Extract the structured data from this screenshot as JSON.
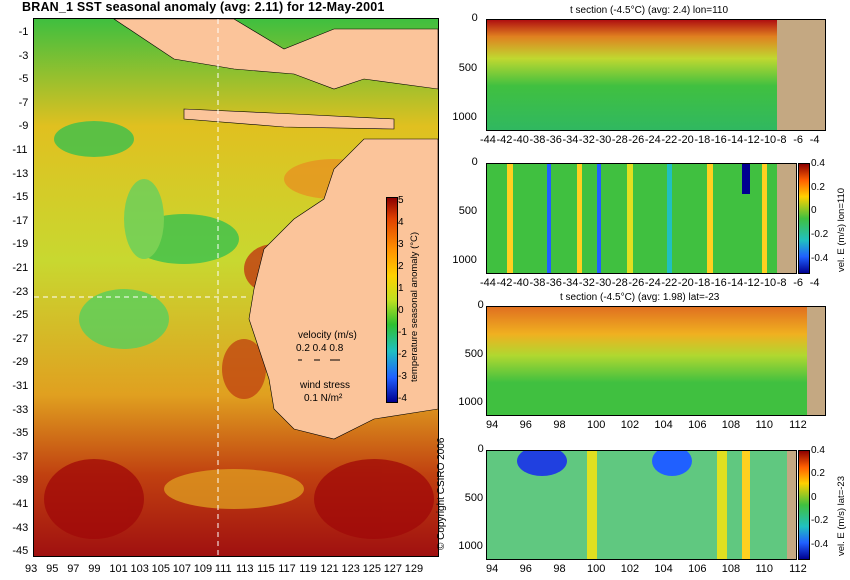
{
  "map": {
    "title": "BRAN_1 SST seasonal anomaly (avg: 2.11) for 12-May-2001",
    "lat_labels": [
      "-1",
      "-3",
      "-5",
      "-7",
      "-9",
      "-11",
      "-13",
      "-15",
      "-17",
      "-19",
      "-21",
      "-23",
      "-25",
      "-27",
      "-29",
      "-31",
      "-33",
      "-35",
      "-37",
      "-39",
      "-41",
      "-43",
      "-45"
    ],
    "lon_labels": [
      "93",
      "95",
      "97",
      "99",
      "101",
      "103",
      "105",
      "107",
      "109",
      "111",
      "113",
      "115",
      "117",
      "119",
      "121",
      "123",
      "125",
      "127",
      "129"
    ],
    "colorbar": {
      "ticks": [
        "5",
        "4",
        "3",
        "2",
        "1",
        "0",
        "-1",
        "-2",
        "-3",
        "-4"
      ],
      "label": "temperature seasonal anomaly (°C)"
    },
    "velocity_legend": {
      "title": "velocity (m/s)",
      "values": "0.2 0.4 0.8",
      "wind_title": "wind stress",
      "wind_value": "0.1 N/m²"
    },
    "copyright": "© Copyright CSIRO 2006"
  },
  "panels": [
    {
      "title": "t section (-4.5°C) (avg: 2.4) lon=110",
      "xlabels": [
        "-44",
        "-42",
        "-40",
        "-38",
        "-36",
        "-34",
        "-32",
        "-30",
        "-28",
        "-26",
        "-24",
        "-22",
        "-20",
        "-18",
        "-16",
        "-14",
        "-12",
        "-10",
        "-8",
        "-6",
        "-4"
      ],
      "ylabels": [
        "0",
        "500",
        "1000"
      ],
      "colorbar": null
    },
    {
      "title": "",
      "xlabels": [
        "-44",
        "-42",
        "-40",
        "-38",
        "-36",
        "-34",
        "-32",
        "-30",
        "-28",
        "-26",
        "-24",
        "-22",
        "-20",
        "-18",
        "-16",
        "-14",
        "-12",
        "-10",
        "-8",
        "-6",
        "-4"
      ],
      "ylabels": [
        "0",
        "500",
        "1000"
      ],
      "colorbar": {
        "ticks": [
          "0.4",
          "0.2",
          "0",
          "-0.2",
          "-0.4"
        ],
        "label": "vel. E (m/s) lon=110"
      }
    },
    {
      "title": "t section (-4.5°C) (avg: 1.98) lat=-23",
      "xlabels": [
        "94",
        "96",
        "98",
        "100",
        "102",
        "104",
        "106",
        "108",
        "110",
        "112"
      ],
      "ylabels": [
        "0",
        "500",
        "1000"
      ],
      "colorbar": null
    },
    {
      "title": "",
      "xlabels": [
        "94",
        "96",
        "98",
        "100",
        "102",
        "104",
        "106",
        "108",
        "110",
        "112"
      ],
      "ylabels": [
        "0",
        "500",
        "1000"
      ],
      "colorbar": {
        "ticks": [
          "0.4",
          "0.2",
          "0",
          "-0.2",
          "-0.4"
        ],
        "label": "vel. E (m/s) lat=-23"
      }
    }
  ],
  "chart_data": [
    {
      "type": "heatmap",
      "title": "BRAN_1 SST seasonal anomaly (avg: 2.11) for 12-May-2001",
      "x_range": [
        93,
        130
      ],
      "y_range": [
        -45,
        0
      ],
      "colorbar_range": [
        -4,
        5
      ],
      "colorbar_label": "temperature seasonal anomaly (°C)"
    },
    {
      "type": "heatmap",
      "title": "t section (-4.5°C) (avg: 2.4) lon=110",
      "x_range": [
        -45,
        -3
      ],
      "y_range": [
        1050,
        0
      ]
    },
    {
      "type": "heatmap",
      "title": "",
      "x_range": [
        -45,
        -3
      ],
      "y_range": [
        1050,
        0
      ],
      "colorbar_range": [
        -0.5,
        0.5
      ],
      "colorbar_label": "vel. E (m/s) lon=110"
    },
    {
      "type": "heatmap",
      "title": "t section (-4.5°C) (avg: 1.98) lat=-23",
      "x_range": [
        93,
        113
      ],
      "y_range": [
        1050,
        0
      ]
    },
    {
      "type": "heatmap",
      "title": "",
      "x_range": [
        93,
        113
      ],
      "y_range": [
        1050,
        0
      ],
      "colorbar_range": [
        -0.5,
        0.5
      ],
      "colorbar_label": "vel. E (m/s) lat=-23"
    }
  ]
}
